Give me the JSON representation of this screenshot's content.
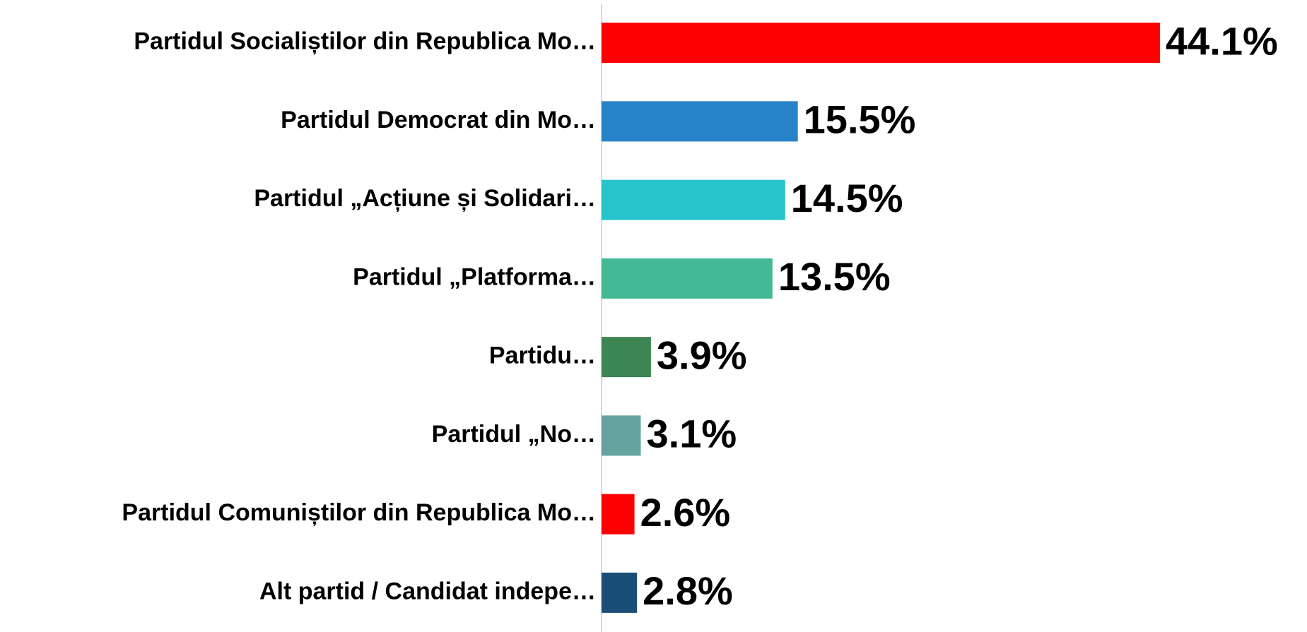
{
  "chart_data": {
    "type": "bar",
    "orientation": "horizontal",
    "categories": [
      "Partidul Socialiștilor din Republica Mo…",
      "Partidul Democrat din Mo…",
      "Partidul „Acțiune și Solidari…",
      "Partidul „Platforma…",
      "Partidu…",
      "Partidul „No…",
      "Partidul Comuniștilor din Republica Mo…",
      "Alt partid / Candidat indepe…"
    ],
    "values": [
      44.1,
      15.5,
      14.5,
      13.5,
      3.9,
      3.1,
      2.6,
      2.8
    ],
    "value_labels": [
      "44.1%",
      "15.5%",
      "14.5%",
      "13.5%",
      "3.9%",
      "3.1%",
      "2.6%",
      "2.8%"
    ],
    "colors": [
      "#ff0000",
      "#2783c7",
      "#27c4cb",
      "#44b995",
      "#3c8653",
      "#65a39e",
      "#ff0000",
      "#1a4e78"
    ]
  }
}
